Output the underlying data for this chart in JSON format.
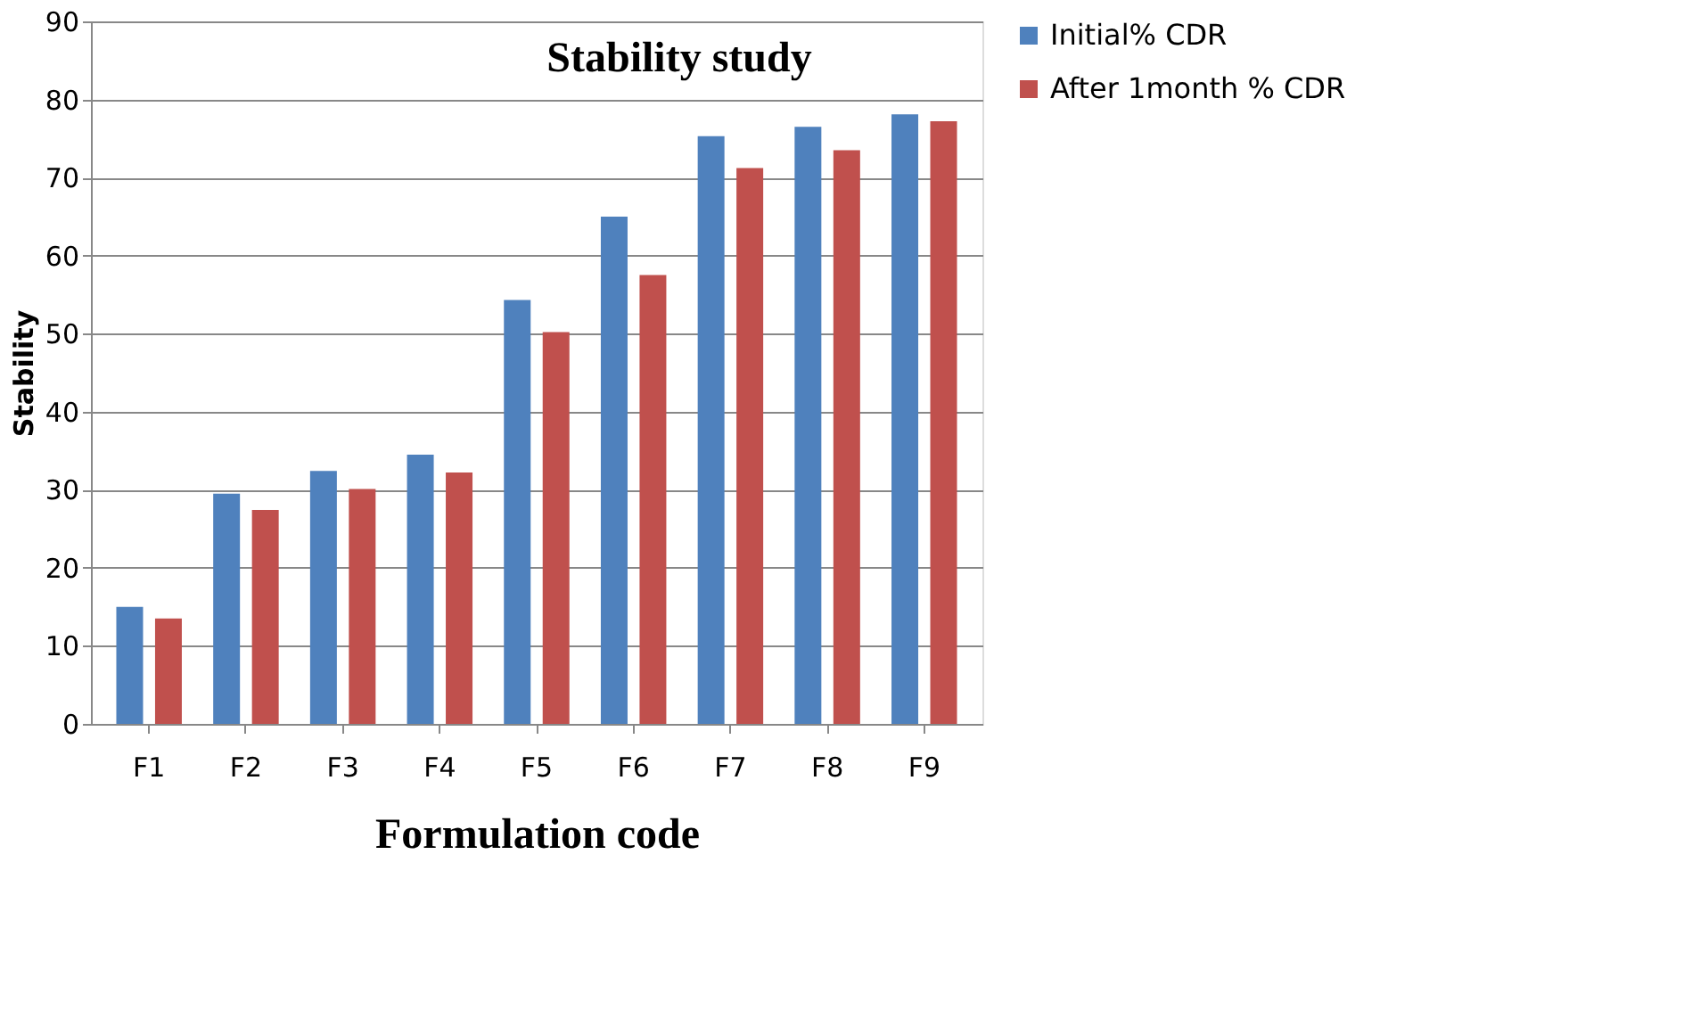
{
  "chart_data": {
    "type": "bar",
    "title": "Stability study",
    "xlabel": "Formulation code",
    "ylabel": "Stability",
    "categories": [
      "F1",
      "F2",
      "F3",
      "F4",
      "F5",
      "F6",
      "F7",
      "F8",
      "F9"
    ],
    "series": [
      {
        "name": "Initial% CDR",
        "color": "#4f81bd",
        "values": [
          15,
          29.5,
          32.4,
          34.5,
          54.3,
          65,
          75.3,
          76.5,
          78.1
        ]
      },
      {
        "name": "After 1month % CDR",
        "color": "#c0504d",
        "values": [
          13.5,
          27.4,
          30.1,
          32.2,
          50.2,
          57.5,
          71.2,
          73.5,
          77.2
        ]
      }
    ],
    "ylim": [
      0,
      90
    ],
    "yticks": [
      0,
      10,
      20,
      30,
      40,
      50,
      60,
      70,
      80,
      90
    ],
    "grid": "y",
    "legend": "right"
  }
}
